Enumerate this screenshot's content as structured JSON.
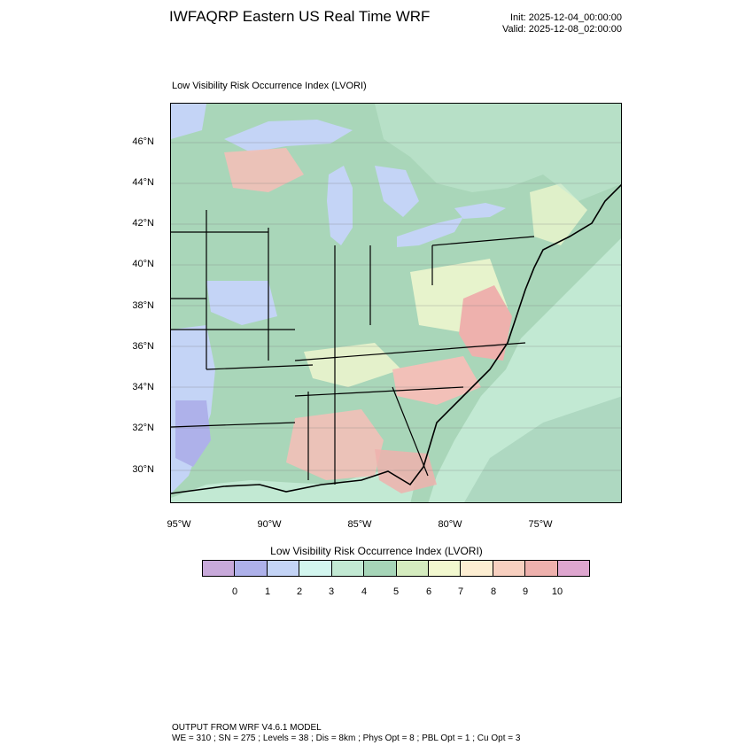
{
  "header": {
    "title": "IWFAQRP Eastern US Real Time WRF",
    "init": "Init: 2025-12-04_00:00:00",
    "valid": "Valid: 2025-12-08_02:00:00"
  },
  "plot": {
    "title": "Low Visibility Risk Occurrence Index   (LVORI)",
    "lat_ticks": [
      "46°N",
      "44°N",
      "42°N",
      "40°N",
      "38°N",
      "36°N",
      "34°N",
      "32°N",
      "30°N"
    ],
    "lon_ticks": [
      "95°W",
      "90°W",
      "85°W",
      "80°W",
      "75°W"
    ]
  },
  "colorbar": {
    "title": "Low Visibility Risk Occurrence Index  (LVORI)",
    "labels": [
      "0",
      "1",
      "2",
      "3",
      "4",
      "5",
      "6",
      "7",
      "8",
      "9",
      "10"
    ],
    "colors": [
      "#c8a9da",
      "#aeb1ea",
      "#c4d4f6",
      "#d3f6ef",
      "#c2e9d3",
      "#a6d5b8",
      "#d5ecbf",
      "#f2f8cf",
      "#fdeed2",
      "#f8d0c0",
      "#eeb1ad",
      "#dea6cf"
    ]
  },
  "map_colors": {
    "land": "#a9d6b9",
    "water": "#c2e9d3",
    "ocean_far": "#aed8c1",
    "lakes": "#c4d4f6",
    "high_risk": "#f2c0b8",
    "very_high_risk": "#eeb1ad",
    "moderate": "#f2f8cf",
    "low": "#c4d4f6",
    "lowest": "#aeb1ea"
  },
  "footer": {
    "line1": "OUTPUT FROM WRF V4.6.1 MODEL",
    "line2": "WE = 310 ; SN = 275 ; Levels = 38 ; Dis = 8km ; Phys Opt = 8 ; PBL Opt = 1 ; Cu Opt = 3"
  }
}
